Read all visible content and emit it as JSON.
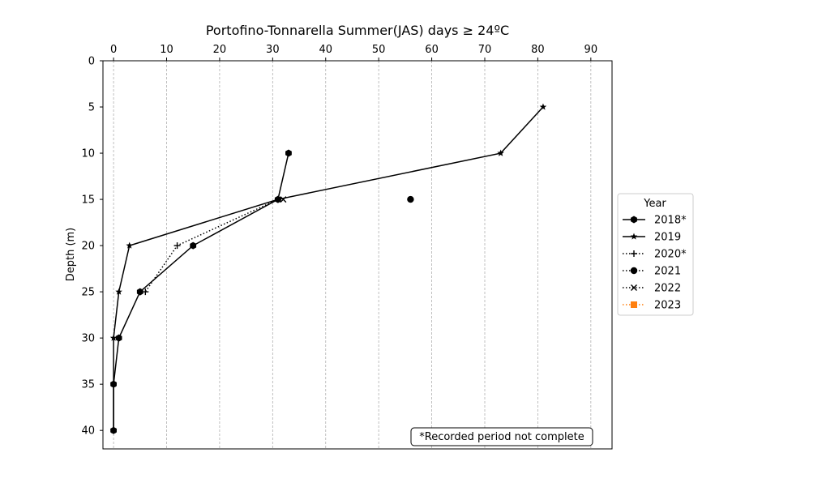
{
  "chart_data": {
    "type": "line",
    "title": "Portofino-Tonnarella Summer(JAS) days ≥ 24ºC",
    "xlabel": "",
    "ylabel": "Depth (m)",
    "xlim": [
      -2,
      94
    ],
    "ylim": [
      42,
      0
    ],
    "y_inverted": true,
    "x_axis_position": "top",
    "x_ticks": [
      0,
      10,
      20,
      30,
      40,
      50,
      60,
      70,
      80,
      90
    ],
    "y_ticks": [
      0,
      5,
      10,
      15,
      20,
      25,
      30,
      35,
      40
    ],
    "grid": "vertical dashed",
    "legend": {
      "title": "Year",
      "placement": "outside-right"
    },
    "annotation": "*Recorded period not complete",
    "series": [
      {
        "name": "2018*",
        "marker": "hexagon",
        "linestyle": "solid",
        "color": "#000000",
        "points": [
          [
            33,
            10
          ],
          [
            31,
            15
          ],
          [
            15,
            20
          ],
          [
            5,
            25
          ],
          [
            1,
            30
          ],
          [
            0,
            35
          ],
          [
            0,
            40
          ]
        ]
      },
      {
        "name": "2019",
        "marker": "star",
        "linestyle": "solid",
        "color": "#000000",
        "points": [
          [
            81,
            5
          ],
          [
            73,
            10
          ],
          [
            31,
            15
          ],
          [
            3,
            20
          ],
          [
            1,
            25
          ],
          [
            0,
            30
          ],
          [
            0,
            35
          ],
          [
            0,
            40
          ]
        ]
      },
      {
        "name": "2020*",
        "marker": "plus",
        "linestyle": "dotted",
        "color": "#000000",
        "points": [
          [
            31,
            15
          ],
          [
            12,
            20
          ],
          [
            6,
            25
          ]
        ]
      },
      {
        "name": "2021",
        "marker": "circle",
        "linestyle": "dotted",
        "color": "#000000",
        "points": [
          [
            56,
            15
          ]
        ]
      },
      {
        "name": "2022",
        "marker": "x",
        "linestyle": "dotted",
        "color": "#000000",
        "points": [
          [
            32,
            15
          ]
        ]
      },
      {
        "name": "2023",
        "marker": "square",
        "linestyle": "dotted",
        "color": "#ff7f0e",
        "points": []
      }
    ]
  }
}
